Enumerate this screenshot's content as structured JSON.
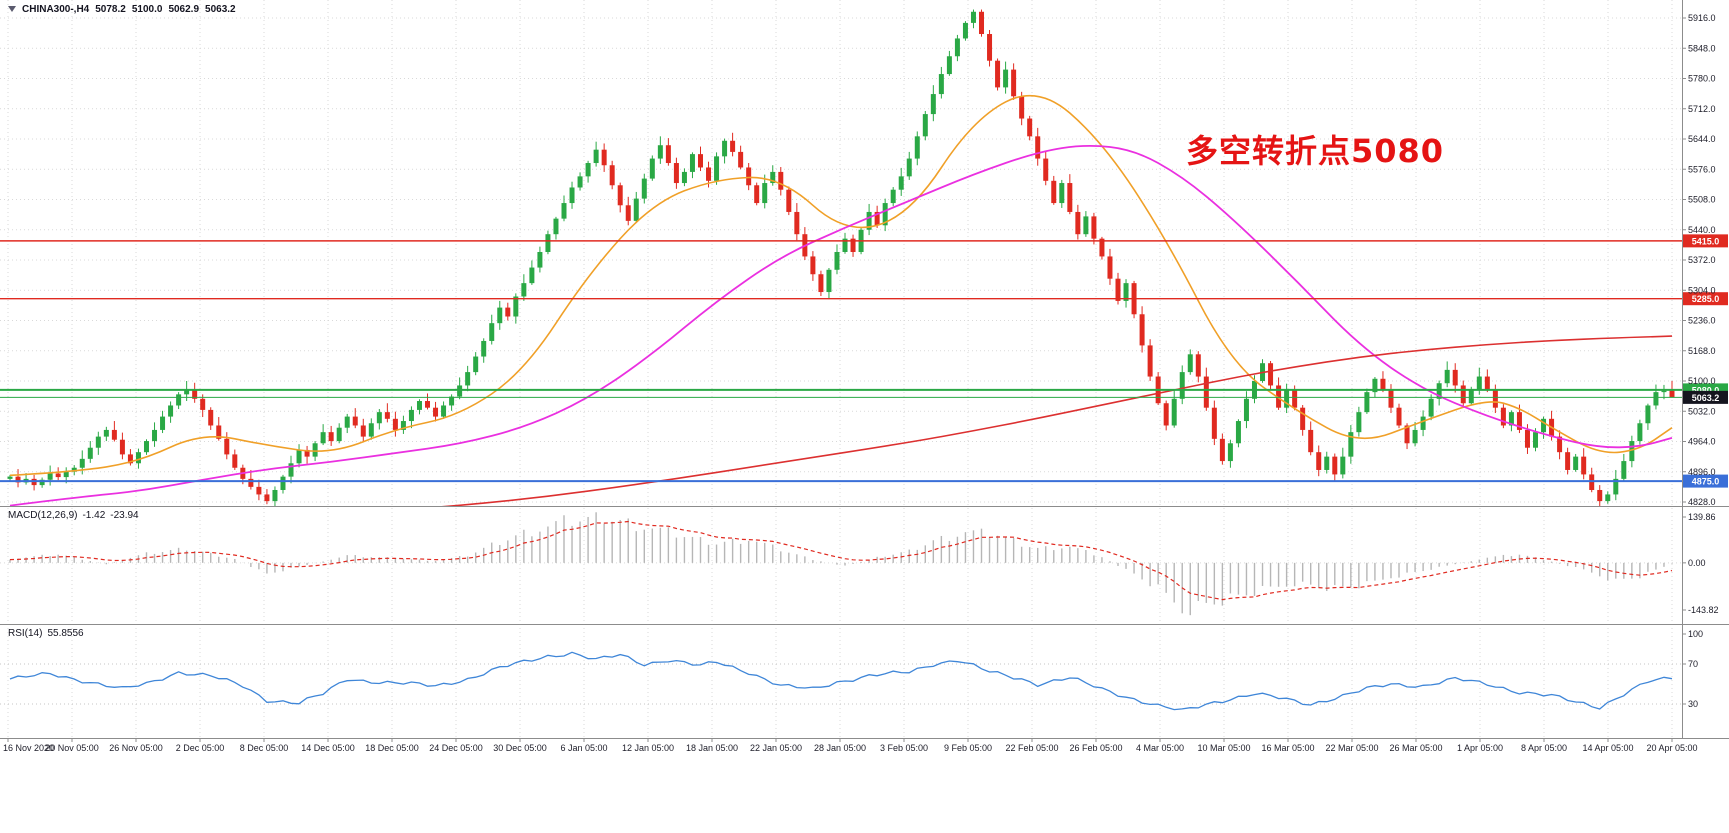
{
  "header": {
    "symbol_period": "CHINA300-,H4",
    "open": "5078.2",
    "high": "5100.0",
    "low": "5062.9",
    "close": "5063.2"
  },
  "annotation": {
    "text": "多空转折点5080"
  },
  "indicators": {
    "macd": {
      "label": "MACD(12,26,9)",
      "main_value": "-1.42",
      "signal_value": "-23.94"
    },
    "rsi": {
      "label": "RSI(14)",
      "value": "55.8556"
    }
  },
  "colors": {
    "up": "#2aa845",
    "down": "#e02a20",
    "ma_fast": "#f0a028",
    "ma_mid": "#ea30e0",
    "ma_slow": "#dc3030",
    "macd_hist": "#b6b6b6",
    "macd_signal": "#e02a20",
    "rsi_line": "#3f86d8",
    "grid": "#d9d9d9",
    "axis_text": "#1c1c28",
    "separator": "#8c8c8c",
    "annotation": "#e51414",
    "line_red": "#e02a20",
    "line_green": "#2aa845",
    "line_blue": "#3a6fd8",
    "price_tag_dark": "#15151f"
  },
  "chart_data": [
    {
      "type": "candlestick",
      "symbol": "CHINA300-",
      "timeframe": "H4",
      "ylim": [
        4828,
        5916
      ],
      "y_ticks": [
        5916,
        5848,
        5780,
        5712,
        5644,
        5576,
        5508,
        5440,
        5372,
        5304,
        5236,
        5168,
        5100,
        5032,
        4964,
        4896,
        4828
      ],
      "y_tick_labels": [
        "5916.0",
        "5848.0",
        "5780.0",
        "5712.0",
        "5644.0",
        "5576.0",
        "5508.0",
        "5440.0",
        "5372.0",
        "5304.0",
        "5236.0",
        "5168.0",
        "5100.0",
        "5032.0",
        "4964.0",
        "4896.0",
        "4828.0"
      ],
      "x_labels": [
        "16 Nov 2020",
        "20 Nov 05:00",
        "26 Nov 05:00",
        "2 Dec 05:00",
        "8 Dec 05:00",
        "14 Dec 05:00",
        "18 Dec 05:00",
        "24 Dec 05:00",
        "30 Dec 05:00",
        "6 Jan 05:00",
        "12 Jan 05:00",
        "18 Jan 05:00",
        "22 Jan 05:00",
        "28 Jan 05:00",
        "3 Feb 05:00",
        "9 Feb 05:00",
        "22 Feb 05:00",
        "26 Feb 05:00",
        "4 Mar 05:00",
        "10 Mar 05:00",
        "16 Mar 05:00",
        "22 Mar 05:00",
        "26 Mar 05:00",
        "1 Apr 05:00",
        "8 Apr 05:00",
        "14 Apr 05:00",
        "20 Apr 05:00"
      ],
      "candles_per_interval": 8,
      "first_open": 4880,
      "closes": [
        4885,
        4872,
        4880,
        4866,
        4878,
        4892,
        4884,
        4896,
        4905,
        4925,
        4950,
        4975,
        4990,
        4968,
        4935,
        4915,
        4940,
        4965,
        4990,
        5020,
        5045,
        5070,
        5082,
        5060,
        5035,
        5000,
        4970,
        4935,
        4905,
        4880,
        4862,
        4845,
        4830,
        4855,
        4885,
        4915,
        4945,
        4930,
        4960,
        4985,
        4965,
        4995,
        5020,
        5000,
        4975,
        5005,
        5030,
        5015,
        4990,
        5010,
        5035,
        5055,
        5040,
        5020,
        5045,
        5065,
        5090,
        5120,
        5155,
        5190,
        5230,
        5265,
        5245,
        5290,
        5320,
        5355,
        5390,
        5430,
        5465,
        5500,
        5535,
        5560,
        5590,
        5620,
        5585,
        5540,
        5495,
        5460,
        5510,
        5555,
        5600,
        5630,
        5590,
        5545,
        5570,
        5610,
        5580,
        5550,
        5605,
        5640,
        5615,
        5580,
        5540,
        5500,
        5545,
        5570,
        5530,
        5480,
        5430,
        5380,
        5340,
        5300,
        5350,
        5390,
        5420,
        5390,
        5440,
        5480,
        5450,
        5500,
        5530,
        5560,
        5600,
        5650,
        5700,
        5745,
        5790,
        5830,
        5870,
        5905,
        5930,
        5880,
        5820,
        5760,
        5800,
        5740,
        5690,
        5650,
        5600,
        5550,
        5500,
        5545,
        5480,
        5430,
        5470,
        5420,
        5380,
        5330,
        5280,
        5320,
        5250,
        5180,
        5110,
        5050,
        5000,
        5060,
        5120,
        5160,
        5110,
        5040,
        4970,
        4920,
        4960,
        5010,
        5060,
        5100,
        5140,
        5090,
        5040,
        5080,
        5040,
        4990,
        4940,
        4900,
        4930,
        4890,
        4930,
        4985,
        5030,
        5075,
        5105,
        5080,
        5040,
        5000,
        4960,
        4990,
        5020,
        5060,
        5095,
        5125,
        5090,
        5050,
        5080,
        5110,
        5080,
        5040,
        5000,
        5030,
        4990,
        4950,
        4985,
        5015,
        4975,
        4940,
        4900,
        4930,
        4890,
        4855,
        4830,
        4845,
        4880,
        4920,
        4965,
        5005,
        5045,
        5075,
        5078.2,
        5063.2
      ],
      "last_candle": {
        "open": 5078.2,
        "high": 5100.0,
        "low": 5062.9,
        "close": 5063.2
      },
      "overlays": [
        {
          "name": "ma-fast-orange",
          "color_key": "ma_fast",
          "width": 1.6,
          "anchors": [
            [
              0,
              4888
            ],
            [
              8,
              4896
            ],
            [
              16,
              4918
            ],
            [
              24,
              4985
            ],
            [
              32,
              4955
            ],
            [
              40,
              4935
            ],
            [
              48,
              4992
            ],
            [
              56,
              5022
            ],
            [
              64,
              5120
            ],
            [
              72,
              5340
            ],
            [
              80,
              5500
            ],
            [
              88,
              5555
            ],
            [
              96,
              5560
            ],
            [
              104,
              5430
            ],
            [
              112,
              5470
            ],
            [
              120,
              5690
            ],
            [
              128,
              5765
            ],
            [
              136,
              5640
            ],
            [
              144,
              5420
            ],
            [
              152,
              5140
            ],
            [
              160,
              5035
            ],
            [
              168,
              4955
            ],
            [
              176,
              5010
            ],
            [
              184,
              5060
            ],
            [
              188,
              5040
            ],
            [
              192,
              4995
            ],
            [
              198,
              4935
            ],
            [
              203,
              4945
            ],
            [
              207,
              4995
            ]
          ]
        },
        {
          "name": "ma-mid-magenta",
          "color_key": "ma_mid",
          "width": 1.8,
          "anchors": [
            [
              0,
              4820
            ],
            [
              8,
              4838
            ],
            [
              16,
              4852
            ],
            [
              24,
              4878
            ],
            [
              32,
              4902
            ],
            [
              40,
              4918
            ],
            [
              48,
              4938
            ],
            [
              56,
              4958
            ],
            [
              64,
              4995
            ],
            [
              72,
              5060
            ],
            [
              80,
              5160
            ],
            [
              88,
              5280
            ],
            [
              96,
              5380
            ],
            [
              104,
              5445
            ],
            [
              112,
              5505
            ],
            [
              120,
              5565
            ],
            [
              128,
              5615
            ],
            [
              134,
              5632
            ],
            [
              140,
              5620
            ],
            [
              146,
              5560
            ],
            [
              152,
              5470
            ],
            [
              160,
              5330
            ],
            [
              168,
              5180
            ],
            [
              176,
              5080
            ],
            [
              184,
              5020
            ],
            [
              192,
              4975
            ],
            [
              198,
              4950
            ],
            [
              203,
              4952
            ],
            [
              207,
              4972
            ]
          ]
        },
        {
          "name": "ma-slow-red",
          "color_key": "ma_slow",
          "width": 1.6,
          "anchors": [
            [
              0,
              4742
            ],
            [
              16,
              4764
            ],
            [
              32,
              4785
            ],
            [
              48,
              4808
            ],
            [
              64,
              4833
            ],
            [
              80,
              4872
            ],
            [
              96,
              4917
            ],
            [
              112,
              4962
            ],
            [
              120,
              4988
            ],
            [
              128,
              5016
            ],
            [
              136,
              5046
            ],
            [
              144,
              5076
            ],
            [
              152,
              5106
            ],
            [
              160,
              5132
            ],
            [
              168,
              5154
            ],
            [
              176,
              5170
            ],
            [
              184,
              5182
            ],
            [
              192,
              5191
            ],
            [
              200,
              5197
            ],
            [
              207,
              5201
            ]
          ]
        }
      ],
      "hlines": [
        {
          "value": 5415.0,
          "label": "5415.0",
          "color": "#e02a20",
          "width": 1.4
        },
        {
          "value": 5285.0,
          "label": "5285.0",
          "color": "#e02a20",
          "width": 1.4
        },
        {
          "value": 5080.0,
          "label": "5080.0",
          "color": "#2aa845",
          "width": 2
        },
        {
          "value": 5063.2,
          "label": "5063.2",
          "color": "#2aa845",
          "width": 1,
          "label_bg": "#15151f"
        },
        {
          "value": 4875.0,
          "label": "4875.0",
          "color": "#3a6fd8",
          "width": 2
        }
      ]
    },
    {
      "type": "macd_histogram",
      "label": "MACD(12,26,9)",
      "ylim": [
        -143.82,
        139.86
      ],
      "y_ticks": [
        139.86,
        0,
        -143.82
      ],
      "y_tick_labels": [
        "139.86",
        "0.00",
        "-143.82"
      ],
      "last_main": -1.42,
      "last_signal": -23.94,
      "envelope": [
        [
          0,
          12
        ],
        [
          6,
          26
        ],
        [
          12,
          -4
        ],
        [
          17,
          28
        ],
        [
          22,
          44
        ],
        [
          28,
          12
        ],
        [
          32,
          -34
        ],
        [
          36,
          -12
        ],
        [
          42,
          22
        ],
        [
          48,
          14
        ],
        [
          53,
          6
        ],
        [
          57,
          22
        ],
        [
          60,
          55
        ],
        [
          64,
          92
        ],
        [
          69,
          126
        ],
        [
          74,
          140
        ],
        [
          78,
          118
        ],
        [
          82,
          94
        ],
        [
          86,
          70
        ],
        [
          88,
          60
        ],
        [
          92,
          74
        ],
        [
          96,
          40
        ],
        [
          100,
          10
        ],
        [
          104,
          -10
        ],
        [
          108,
          16
        ],
        [
          112,
          36
        ],
        [
          115,
          68
        ],
        [
          119,
          95
        ],
        [
          123,
          86
        ],
        [
          126,
          58
        ],
        [
          128,
          45
        ],
        [
          132,
          50
        ],
        [
          136,
          18
        ],
        [
          140,
          -35
        ],
        [
          143,
          -80
        ],
        [
          146,
          -144
        ],
        [
          150,
          -122
        ],
        [
          155,
          -92
        ],
        [
          160,
          -62
        ],
        [
          165,
          -80
        ],
        [
          169,
          -68
        ],
        [
          172,
          -44
        ],
        [
          176,
          -24
        ],
        [
          180,
          -4
        ],
        [
          184,
          16
        ],
        [
          188,
          26
        ],
        [
          192,
          4
        ],
        [
          196,
          -22
        ],
        [
          200,
          -55
        ],
        [
          203,
          -42
        ],
        [
          206,
          -12
        ],
        [
          207,
          -2
        ]
      ]
    },
    {
      "type": "line",
      "label": "RSI(14)",
      "ylim": [
        0,
        100
      ],
      "y_ticks": [
        100,
        70,
        30
      ],
      "y_tick_labels": [
        "100",
        "70",
        "30"
      ],
      "levels": [
        70,
        30
      ],
      "last": 55.8556,
      "points": [
        [
          0,
          55
        ],
        [
          5,
          60
        ],
        [
          10,
          52
        ],
        [
          14,
          45
        ],
        [
          17,
          50
        ],
        [
          21,
          62
        ],
        [
          25,
          58
        ],
        [
          29,
          48
        ],
        [
          32,
          34
        ],
        [
          36,
          31
        ],
        [
          39,
          40
        ],
        [
          42,
          55
        ],
        [
          46,
          52
        ],
        [
          50,
          50
        ],
        [
          53,
          48
        ],
        [
          57,
          55
        ],
        [
          61,
          66
        ],
        [
          64,
          72
        ],
        [
          67,
          78
        ],
        [
          70,
          81
        ],
        [
          73,
          74
        ],
        [
          76,
          79
        ],
        [
          79,
          70
        ],
        [
          82,
          74
        ],
        [
          86,
          68
        ],
        [
          88,
          72
        ],
        [
          92,
          62
        ],
        [
          96,
          48
        ],
        [
          100,
          45
        ],
        [
          103,
          52
        ],
        [
          107,
          58
        ],
        [
          112,
          62
        ],
        [
          115,
          70
        ],
        [
          118,
          74
        ],
        [
          122,
          62
        ],
        [
          126,
          55
        ],
        [
          128,
          50
        ],
        [
          132,
          56
        ],
        [
          136,
          45
        ],
        [
          140,
          35
        ],
        [
          143,
          28
        ],
        [
          146,
          23
        ],
        [
          150,
          32
        ],
        [
          155,
          40
        ],
        [
          158,
          36
        ],
        [
          162,
          30
        ],
        [
          166,
          38
        ],
        [
          169,
          45
        ],
        [
          172,
          50
        ],
        [
          176,
          48
        ],
        [
          180,
          55
        ],
        [
          184,
          50
        ],
        [
          188,
          42
        ],
        [
          192,
          38
        ],
        [
          195,
          32
        ],
        [
          198,
          27
        ],
        [
          201,
          40
        ],
        [
          204,
          52
        ],
        [
          207,
          55.86
        ]
      ]
    }
  ]
}
